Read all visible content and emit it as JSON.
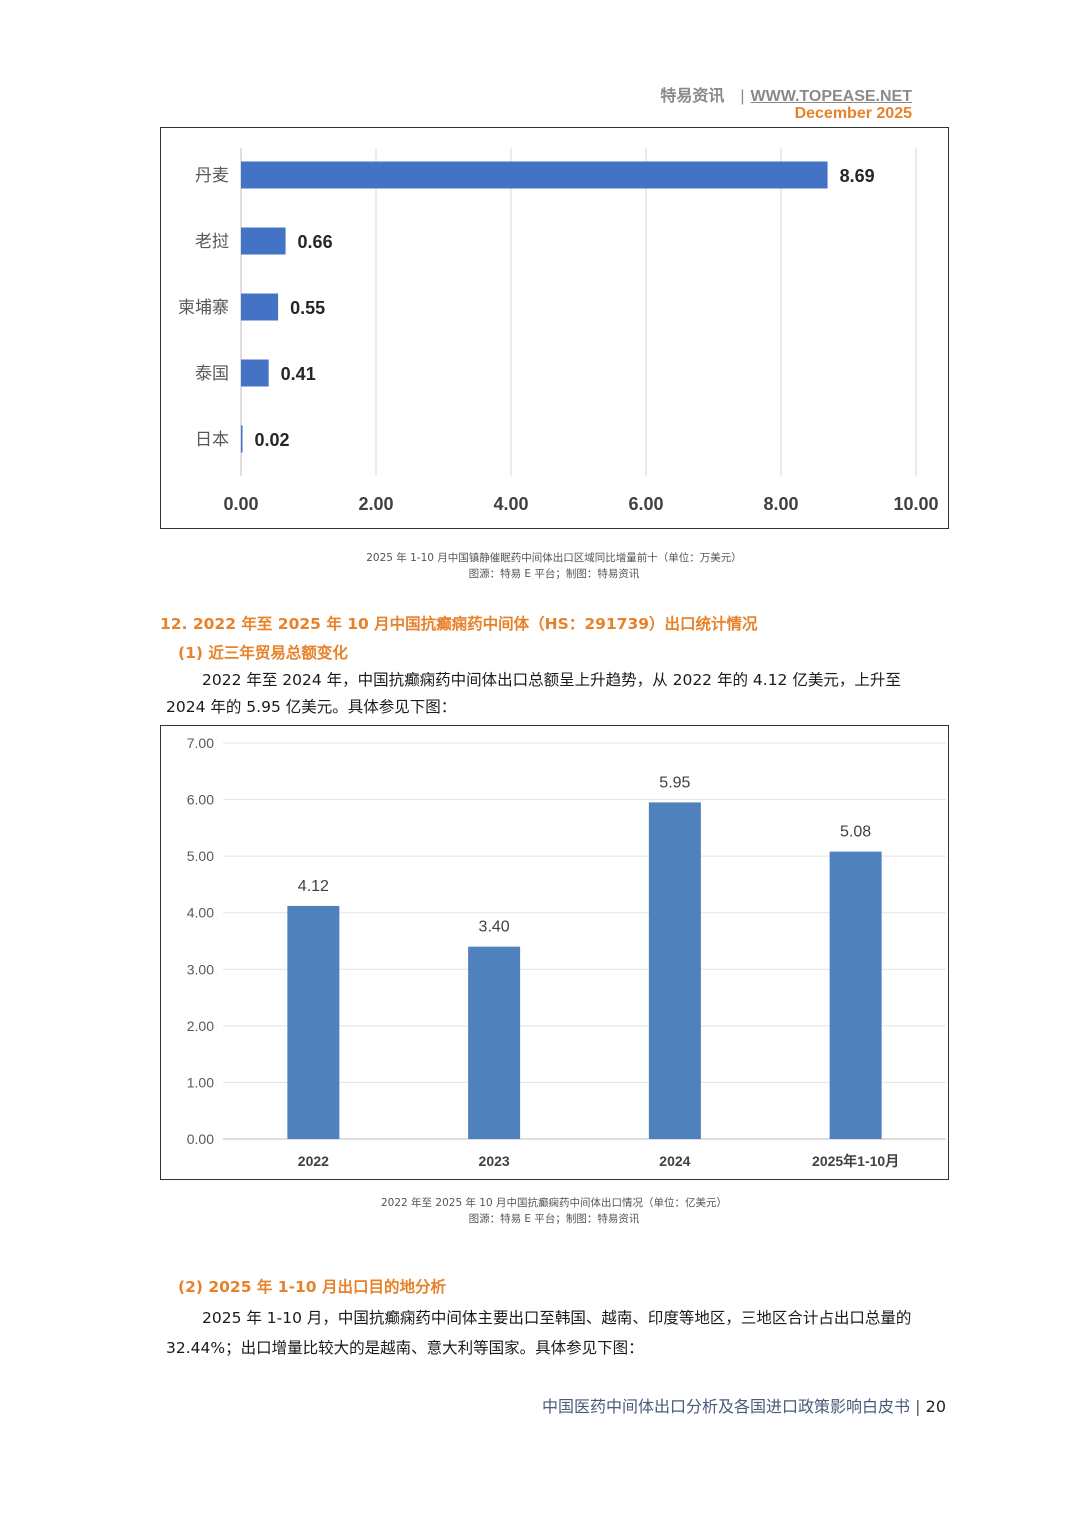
{
  "header": {
    "brand": "特易资讯",
    "separator": "|",
    "url": "WWW.TOPEASE.NET",
    "date": "December 2025"
  },
  "chart1": {
    "caption_line1": "2025 年 1-10 月中国镇静催眠药中间体出口区域同比增量前十（单位：万美元）",
    "caption_line2": "图源：特易 E 平台；制图：特易资讯"
  },
  "section12": {
    "title": "12. 2022 年至 2025 年 10 月中国抗癫痫药中间体（HS：291739）出口统计情况",
    "sub1": "(1) 近三年贸易总额变化",
    "para1": "2022 年至 2024 年，中国抗癫痫药中间体出口总额呈上升趋势，从 2022 年的 4.12 亿美元，上升至 2024 年的 5.95 亿美元。具体参见下图："
  },
  "chart2": {
    "caption_line1": "2022 年至 2025 年 10 月中国抗癫痫药中间体出口情况（单位：亿美元）",
    "caption_line2": "图源：特易 E 平台；制图：特易资讯"
  },
  "section12b": {
    "sub2": "(2) 2025 年 1-10 月出口目的地分析",
    "para2": "2025 年 1-10 月，中国抗癫痫药中间体主要出口至韩国、越南、印度等地区，三地区合计占出口总量的 32.44%；出口增量比较大的是越南、意大利等国家。具体参见下图："
  },
  "footer": {
    "title": "中国医药中间体出口分析及各国进口政策影响白皮书",
    "separator": "|",
    "page": "20"
  },
  "chart_data": [
    {
      "type": "bar",
      "orientation": "horizontal",
      "categories": [
        "丹麦",
        "老挝",
        "柬埔寨",
        "泰国",
        "日本"
      ],
      "values": [
        8.69,
        0.66,
        0.55,
        0.41,
        0.02
      ],
      "value_labels": [
        "8.69",
        "0.66",
        "0.55",
        "0.41",
        "0.02"
      ],
      "xlim": [
        0,
        10
      ],
      "x_ticks": [
        "0.00",
        "2.00",
        "4.00",
        "6.00",
        "8.00",
        "10.00"
      ],
      "bar_color": "#4472c4",
      "grid": "vertical"
    },
    {
      "type": "bar",
      "orientation": "vertical",
      "categories": [
        "2022",
        "2023",
        "2024",
        "2025年1-10月"
      ],
      "values": [
        4.12,
        3.4,
        5.95,
        5.08
      ],
      "value_labels": [
        "4.12",
        "3.40",
        "5.95",
        "5.08"
      ],
      "ylim": [
        0,
        7
      ],
      "y_ticks": [
        "0.00",
        "1.00",
        "2.00",
        "3.00",
        "4.00",
        "5.00",
        "6.00",
        "7.00"
      ],
      "bar_color": "#4f81bd",
      "grid": "horizontal"
    }
  ]
}
